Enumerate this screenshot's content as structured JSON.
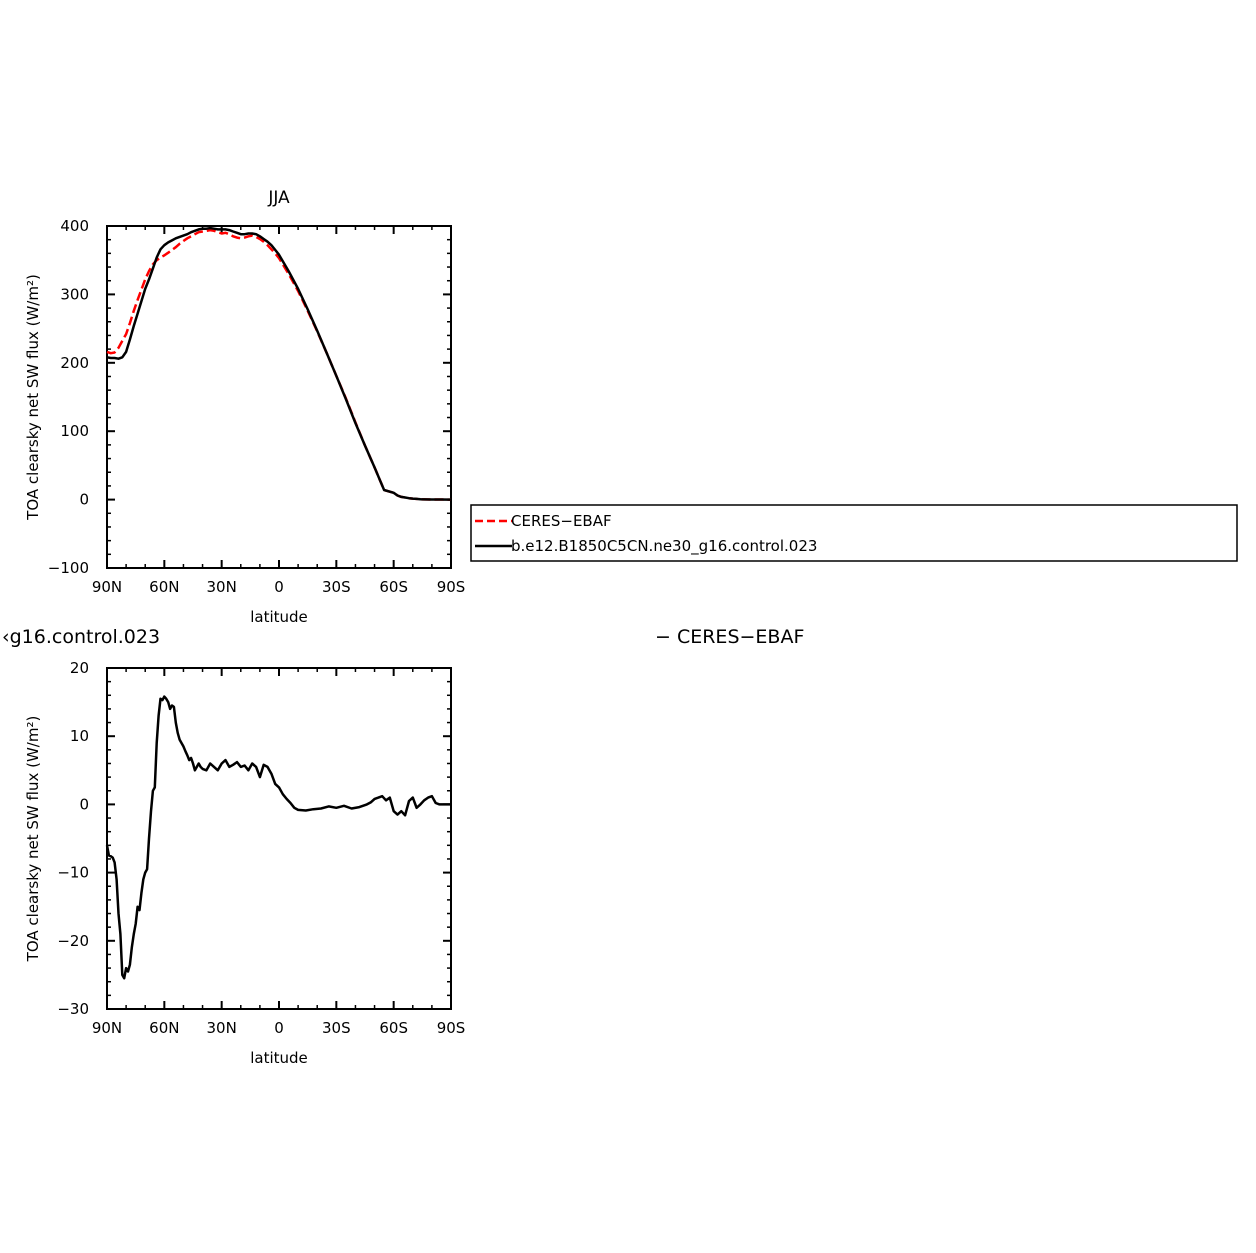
{
  "chart_data": [
    {
      "type": "line",
      "title": "JJA",
      "xlabel": "latitude",
      "ylabel": "TOA clearsky net SW flux (W/m²)",
      "ylim": [
        -100,
        400
      ],
      "xlim": [
        90,
        -90
      ],
      "x_tick_values": [
        90,
        60,
        30,
        0,
        -30,
        -60,
        -90
      ],
      "x_tick_labels": [
        "90N",
        "60N",
        "30N",
        "0",
        "30S",
        "60S",
        "90S"
      ],
      "y_tick_values": [
        -100,
        0,
        100,
        200,
        300,
        400
      ],
      "y_tick_labels": [
        "−100",
        "0",
        "100",
        "200",
        "300",
        "400"
      ],
      "legend_position": "right of plot",
      "series": [
        {
          "name": "CERES−EBAF",
          "color": "#ff0000",
          "dash": "dashed",
          "x": [
            90,
            88,
            86,
            84,
            82,
            80,
            78,
            76,
            74,
            72,
            70,
            68,
            66,
            64,
            62,
            60,
            58,
            56,
            54,
            52,
            50,
            48,
            46,
            44,
            42,
            40,
            38,
            36,
            34,
            32,
            30,
            28,
            26,
            24,
            22,
            20,
            18,
            16,
            14,
            12,
            10,
            8,
            6,
            4,
            2,
            0,
            -5,
            -10,
            -15,
            -20,
            -25,
            -30,
            -35,
            -40,
            -45,
            -50,
            -55,
            -60,
            -62,
            -64,
            -66,
            -68,
            -70,
            -72,
            -74,
            -76,
            -80,
            -85,
            -90
          ],
          "y": [
            216,
            214,
            215,
            222,
            232,
            242,
            258,
            276,
            292,
            307,
            322,
            334,
            344,
            350,
            354,
            357,
            361,
            365,
            369,
            374,
            378,
            382,
            385,
            388,
            391,
            392,
            393,
            394,
            393,
            391,
            389,
            390,
            388,
            385,
            383,
            382,
            383,
            385,
            386,
            384,
            381,
            377,
            372,
            366,
            360,
            353,
            330,
            305,
            276,
            246,
            214,
            181,
            148,
            113,
            79,
            47,
            14,
            10,
            6,
            4,
            3,
            2,
            1.5,
            1,
            0.5,
            0.3,
            0.2,
            0.1,
            0
          ]
        },
        {
          "name": "b.e12.B1850C5CN.ne30_g16.control.023",
          "color": "#000000",
          "dash": "solid",
          "x": [
            90,
            88,
            86,
            84,
            82,
            80,
            78,
            76,
            74,
            72,
            70,
            68,
            66,
            64,
            62,
            60,
            58,
            56,
            54,
            52,
            50,
            48,
            46,
            44,
            42,
            40,
            38,
            36,
            34,
            32,
            30,
            28,
            26,
            24,
            22,
            20,
            18,
            16,
            14,
            12,
            10,
            8,
            6,
            4,
            2,
            0,
            -5,
            -10,
            -15,
            -20,
            -25,
            -30,
            -35,
            -40,
            -45,
            -50,
            -55,
            -60,
            -62,
            -64,
            -66,
            -68,
            -70,
            -72,
            -74,
            -76,
            -80,
            -85,
            -90
          ],
          "y": [
            208,
            207,
            207,
            206,
            208,
            216,
            234,
            254,
            272,
            290,
            308,
            322,
            338,
            354,
            366,
            372,
            376,
            379,
            382,
            384,
            386,
            388,
            391,
            393,
            395,
            396,
            396,
            397,
            396,
            395,
            395,
            395,
            394,
            392,
            390,
            388,
            388,
            389,
            389,
            388,
            385,
            381,
            377,
            372,
            365,
            358,
            334,
            308,
            278,
            247,
            214,
            181,
            147,
            112,
            79,
            47,
            14,
            10,
            6,
            4,
            3,
            2,
            1.5,
            1,
            0.5,
            0.3,
            0.2,
            0.1,
            0
          ]
        }
      ]
    },
    {
      "type": "line",
      "title": "‹g16.control.023",
      "title_right": "− CERES−EBAF",
      "xlabel": "latitude",
      "ylabel": "TOA clearsky net SW flux (W/m²)",
      "ylim": [
        -30,
        20
      ],
      "xlim": [
        90,
        -90
      ],
      "x_tick_values": [
        90,
        60,
        30,
        0,
        -30,
        -60,
        -90
      ],
      "x_tick_labels": [
        "90N",
        "60N",
        "30N",
        "0",
        "30S",
        "60S",
        "90S"
      ],
      "y_tick_values": [
        -30,
        -20,
        -10,
        0,
        10,
        20
      ],
      "y_tick_labels": [
        "−30",
        "−20",
        "−10",
        "0",
        "10",
        "20"
      ],
      "series": [
        {
          "name": "",
          "color": "#000000",
          "dash": "solid",
          "x": [
            90,
            89,
            88,
            87,
            86,
            85,
            84,
            83,
            82,
            81,
            80,
            79,
            78,
            77,
            76,
            75,
            74,
            73,
            72,
            71,
            70,
            69,
            68,
            67,
            66,
            65,
            64,
            63,
            62,
            61,
            60,
            59,
            58,
            57,
            56,
            55,
            54,
            53,
            52,
            51,
            50,
            49,
            48,
            47,
            46,
            45,
            44,
            43,
            42,
            41,
            40,
            38,
            36,
            34,
            32,
            30,
            28,
            26,
            24,
            22,
            20,
            18,
            16,
            14,
            12,
            10,
            8,
            6,
            4,
            2,
            0,
            -2,
            -4,
            -6,
            -8,
            -10,
            -14,
            -18,
            -22,
            -26,
            -30,
            -34,
            -38,
            -42,
            -46,
            -48,
            -50,
            -52,
            -54,
            -56,
            -58,
            -60,
            -62,
            -64,
            -66,
            -68,
            -70,
            -72,
            -74,
            -76,
            -78,
            -80,
            -82,
            -84,
            -86,
            -90
          ],
          "y": [
            -6,
            -7.5,
            -7.6,
            -7.8,
            -8.5,
            -11,
            -16,
            -19,
            -25,
            -25.5,
            -24,
            -24.5,
            -23.5,
            -21,
            -19,
            -17.5,
            -15,
            -15.5,
            -13,
            -11,
            -10,
            -9.5,
            -5,
            -1,
            2,
            2.5,
            9,
            13,
            15.5,
            15.3,
            15.8,
            15.5,
            15,
            14,
            14.5,
            14.3,
            12,
            10.5,
            9.5,
            9,
            8.5,
            7.8,
            7.2,
            6.5,
            6.8,
            6,
            5,
            5.5,
            6,
            5.5,
            5.2,
            5,
            6,
            5.5,
            5,
            6,
            6.5,
            5.5,
            5.8,
            6.2,
            5.5,
            5.7,
            5,
            6,
            5.5,
            4,
            5.8,
            5.5,
            4.5,
            3,
            2.5,
            1.5,
            0.8,
            0.2,
            -0.5,
            -0.8,
            -0.9,
            -0.7,
            -0.6,
            -0.3,
            -0.5,
            -0.2,
            -0.6,
            -0.4,
            0,
            0.3,
            0.8,
            1,
            1.2,
            0.6,
            1,
            -1,
            -1.5,
            -1,
            -1.6,
            0.5,
            1,
            -0.5,
            0,
            0.6,
            1,
            1.2,
            0.2,
            0,
            0,
            0
          ]
        }
      ]
    }
  ],
  "legend": {
    "entries": [
      {
        "label": "CERES−EBAF",
        "color": "#ff0000",
        "dash": "dashed"
      },
      {
        "label": "b.e12.B1850C5CN.ne30_g16.control.023",
        "color": "#000000",
        "dash": "solid"
      }
    ]
  }
}
